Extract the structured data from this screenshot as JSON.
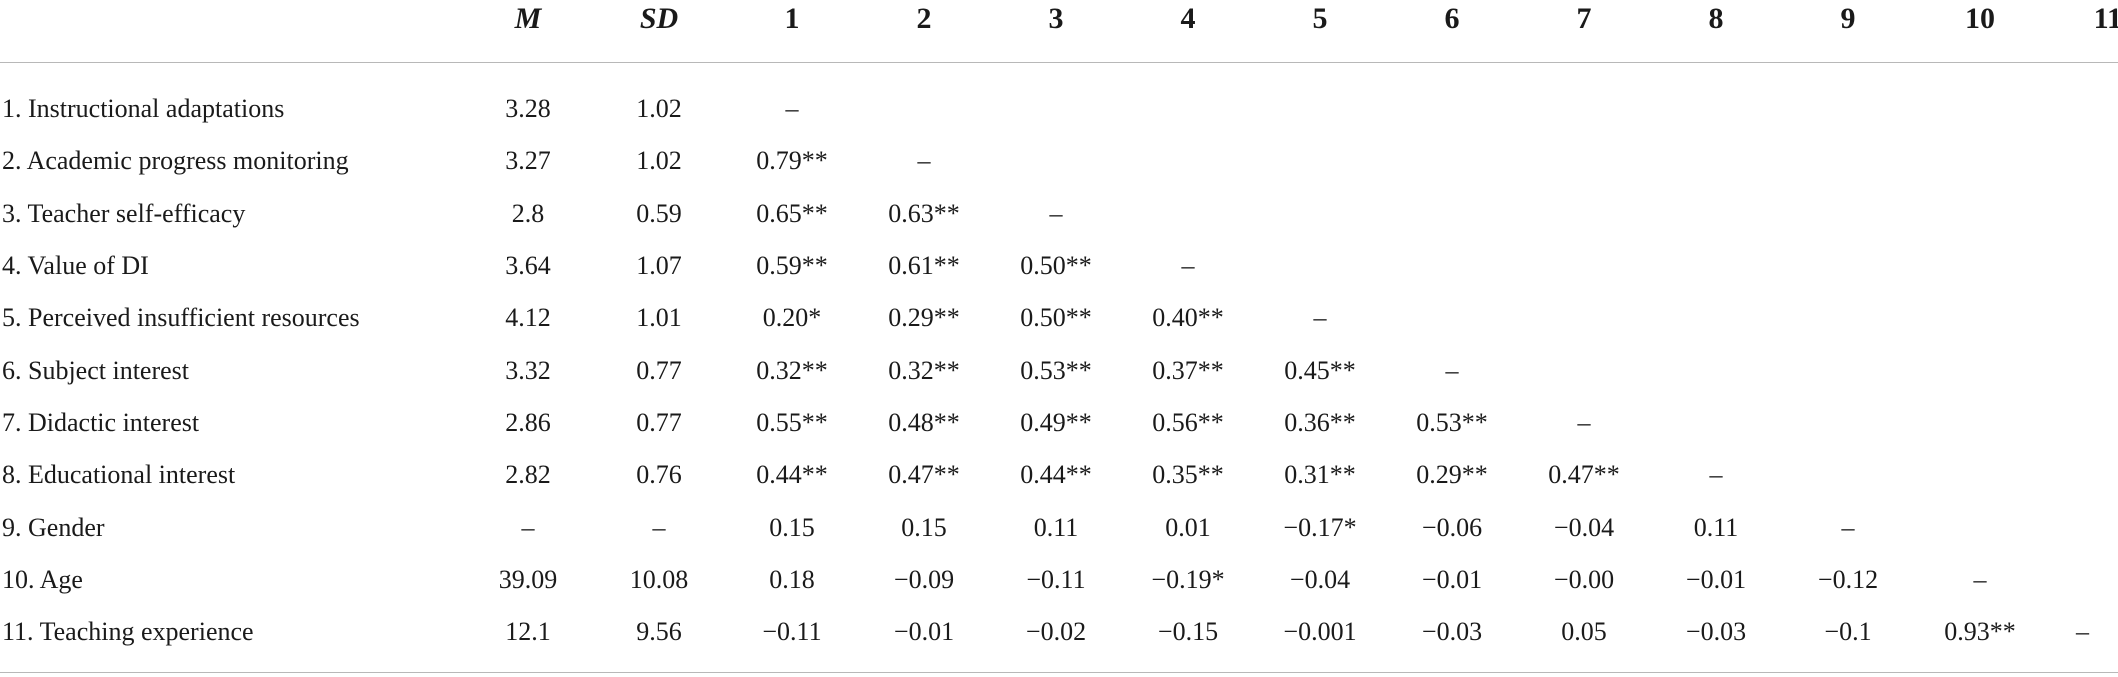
{
  "table": {
    "headers": [
      "",
      "M",
      "SD",
      "1",
      "2",
      "3",
      "4",
      "5",
      "6",
      "7",
      "8",
      "9",
      "10",
      "11"
    ],
    "rows": [
      {
        "label": "1. Instructional adaptations",
        "cells": [
          "3.28",
          "1.02",
          "–",
          "",
          "",
          "",
          "",
          "",
          "",
          "",
          "",
          "",
          ""
        ]
      },
      {
        "label": "2. Academic progress monitoring",
        "cells": [
          "3.27",
          "1.02",
          "0.79**",
          "–",
          "",
          "",
          "",
          "",
          "",
          "",
          "",
          "",
          ""
        ]
      },
      {
        "label": "3. Teacher self-efficacy",
        "cells": [
          "2.8",
          "0.59",
          "0.65**",
          "0.63**",
          "–",
          "",
          "",
          "",
          "",
          "",
          "",
          "",
          ""
        ]
      },
      {
        "label": "4. Value of DI",
        "cells": [
          "3.64",
          "1.07",
          "0.59**",
          "0.61**",
          "0.50**",
          "–",
          "",
          "",
          "",
          "",
          "",
          "",
          ""
        ]
      },
      {
        "label": "5. Perceived insufficient resources",
        "cells": [
          "4.12",
          "1.01",
          "0.20*",
          "0.29**",
          "0.50**",
          "0.40**",
          "–",
          "",
          "",
          "",
          "",
          "",
          ""
        ]
      },
      {
        "label": "6. Subject interest",
        "cells": [
          "3.32",
          "0.77",
          "0.32**",
          "0.32**",
          "0.53**",
          "0.37**",
          "0.45**",
          "–",
          "",
          "",
          "",
          "",
          ""
        ]
      },
      {
        "label": "7. Didactic interest",
        "cells": [
          "2.86",
          "0.77",
          "0.55**",
          "0.48**",
          "0.49**",
          "0.56**",
          "0.36**",
          "0.53**",
          "–",
          "",
          "",
          "",
          ""
        ]
      },
      {
        "label": "8. Educational interest",
        "cells": [
          "2.82",
          "0.76",
          "0.44**",
          "0.47**",
          "0.44**",
          "0.35**",
          "0.31**",
          "0.29**",
          "0.47**",
          "–",
          "",
          "",
          ""
        ]
      },
      {
        "label": "9. Gender",
        "cells": [
          "–",
          "–",
          "0.15",
          "0.15",
          "0.11",
          "0.01",
          "−0.17*",
          "−0.06",
          "−0.04",
          "0.11",
          "–",
          "",
          ""
        ]
      },
      {
        "label": "10. Age",
        "cells": [
          "39.09",
          "10.08",
          "0.18",
          "−0.09",
          "−0.11",
          "−0.19*",
          "−0.04",
          "−0.01",
          "−0.00",
          "−0.01",
          "−0.12",
          "–",
          ""
        ]
      },
      {
        "label": "11. Teaching experience",
        "cells": [
          "12.1",
          "9.56",
          "−0.11",
          "−0.01",
          "−0.02",
          "−0.15",
          "−0.001",
          "−0.03",
          "0.05",
          "−0.03",
          "−0.1",
          "0.93**",
          "–"
        ]
      }
    ]
  }
}
